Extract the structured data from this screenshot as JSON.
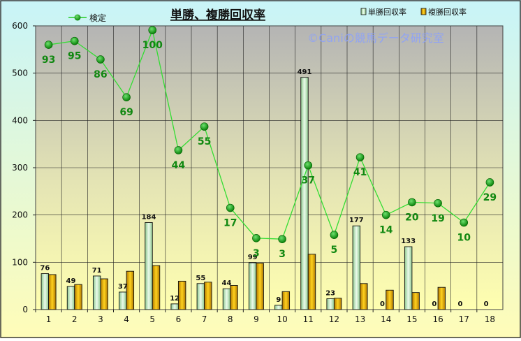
{
  "chart_data": {
    "type": "bar",
    "title": "単勝、複勝回収率",
    "watermark": "©Caniの競馬データ研究室",
    "categories": [
      "1",
      "2",
      "3",
      "4",
      "5",
      "6",
      "7",
      "8",
      "9",
      "10",
      "11",
      "12",
      "13",
      "14",
      "15",
      "16",
      "17",
      "18"
    ],
    "ylim": [
      0,
      600
    ],
    "yticks": [
      0,
      100,
      200,
      300,
      400,
      500,
      600
    ],
    "grid": true,
    "legend_position": "top",
    "series": [
      {
        "name": "単勝回収率",
        "type": "bar",
        "color": "#c8f0c8",
        "values": [
          76,
          49,
          71,
          37,
          184,
          12,
          55,
          44,
          99,
          9,
          491,
          23,
          177,
          0,
          133,
          0,
          0,
          0
        ],
        "show_labels": true
      },
      {
        "name": "複勝回収率",
        "type": "bar",
        "color": "#e8b000",
        "values": [
          74,
          53,
          65,
          81,
          93,
          60,
          58,
          51,
          98,
          38,
          117,
          24,
          55,
          41,
          36,
          47,
          0,
          0
        ],
        "show_labels": false
      },
      {
        "name": "検定",
        "type": "line",
        "color": "#00aa00",
        "values": [
          560,
          568,
          529,
          449,
          591,
          337,
          387,
          215,
          151,
          149,
          305,
          158,
          322,
          200,
          227,
          225,
          184,
          269
        ],
        "labels": [
          "93",
          "95",
          "86",
          "69",
          "100",
          "44",
          "55",
          "17",
          "3",
          "3",
          "37",
          "5",
          "41",
          "14",
          "20",
          "19",
          "10",
          "29"
        ]
      }
    ]
  }
}
